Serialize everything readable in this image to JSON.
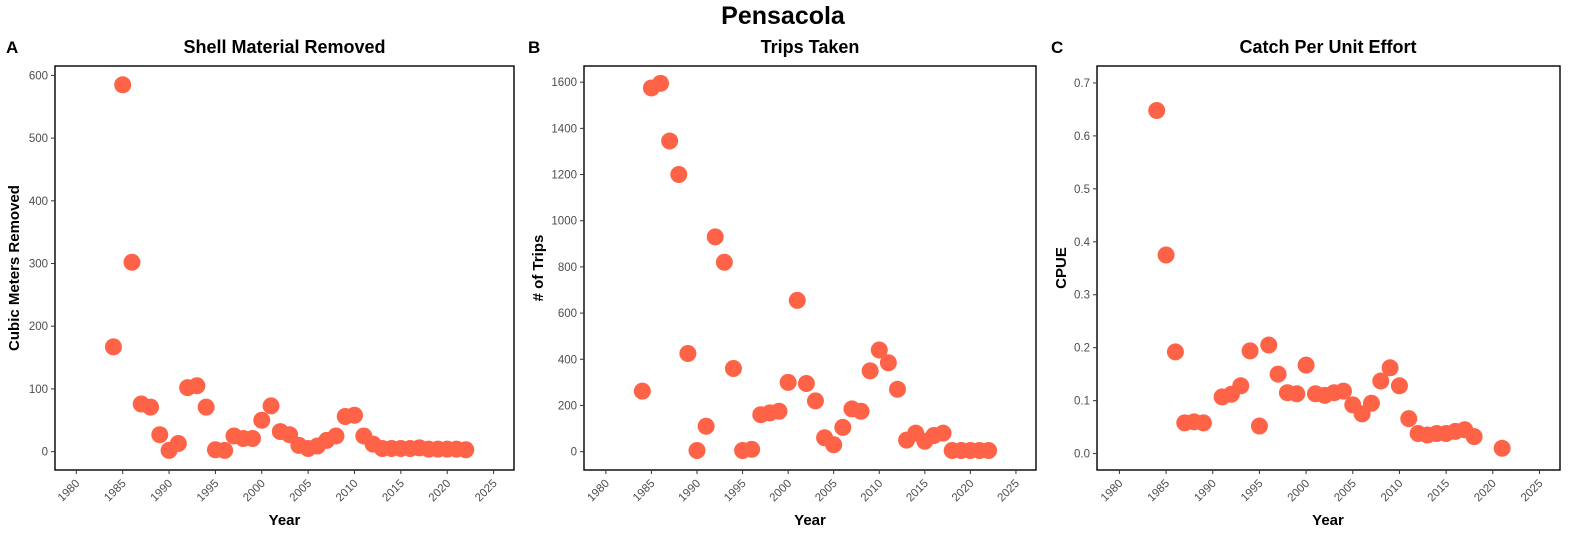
{
  "figure_title": "Pensacola",
  "colors": {
    "point": "#FF6347",
    "frame": "#000000",
    "tick_text": "#4d4d4d"
  },
  "chart_data": [
    {
      "panel": "A",
      "type": "scatter",
      "title": "Shell Material Removed",
      "xlabel": "Year",
      "ylabel": "Cubic Meters Removed",
      "xlim": [
        1977.7,
        2027.2
      ],
      "ylim": [
        -29.3,
        615
      ],
      "xticks": [
        1980,
        1985,
        1990,
        1995,
        2000,
        2005,
        2010,
        2015,
        2020,
        2025
      ],
      "yticks": [
        0,
        100,
        200,
        300,
        400,
        500,
        600
      ],
      "grid": false,
      "x": [
        1984,
        1985,
        1986,
        1987,
        1988,
        1989,
        1990,
        1991,
        1992,
        1993,
        1994,
        1995,
        1996,
        1997,
        1998,
        1999,
        2000,
        2001,
        2002,
        2003,
        2004,
        2005,
        2006,
        2007,
        2008,
        2009,
        2010,
        2011,
        2012,
        2013,
        2014,
        2015,
        2016,
        2017,
        2018,
        2019,
        2020,
        2021,
        2022
      ],
      "y": [
        167,
        585,
        302,
        76,
        71,
        27,
        2,
        13,
        102,
        105,
        71,
        3,
        2,
        25,
        21,
        21,
        50,
        73,
        32,
        27,
        10,
        5,
        9,
        18,
        25,
        56,
        58,
        25,
        12,
        5,
        5,
        5,
        5,
        6,
        4,
        4,
        4,
        4,
        3
      ]
    },
    {
      "panel": "B",
      "type": "scatter",
      "title": "Trips Taken",
      "xlabel": "Year",
      "ylabel": "# of Trips",
      "xlim": [
        1977.6,
        2027.2
      ],
      "ylim": [
        -79.5,
        1670
      ],
      "xticks": [
        1980,
        1985,
        1990,
        1995,
        2000,
        2005,
        2010,
        2015,
        2020,
        2025
      ],
      "yticks": [
        0,
        200,
        400,
        600,
        800,
        1000,
        1200,
        1400,
        1600
      ],
      "grid": false,
      "x": [
        1984,
        1985,
        1986,
        1987,
        1988,
        1989,
        1990,
        1991,
        1992,
        1993,
        1994,
        1995,
        1996,
        1997,
        1998,
        1999,
        2000,
        2001,
        2002,
        2003,
        2004,
        2005,
        2006,
        2007,
        2008,
        2009,
        2010,
        2011,
        2012,
        2013,
        2014,
        2015,
        2016,
        2017,
        2018,
        2019,
        2020,
        2021,
        2022
      ],
      "y": [
        262,
        1575,
        1595,
        1345,
        1200,
        425,
        5,
        110,
        930,
        820,
        360,
        5,
        10,
        160,
        168,
        175,
        300,
        655,
        295,
        220,
        60,
        30,
        105,
        185,
        175,
        350,
        440,
        385,
        270,
        50,
        80,
        45,
        70,
        80,
        5,
        5,
        5,
        5,
        5
      ]
    },
    {
      "panel": "C",
      "type": "scatter",
      "title": "Catch Per Unit Effort",
      "xlabel": "Year",
      "ylabel": "CPUE",
      "xlim": [
        1977.6,
        2027.2
      ],
      "ylim": [
        -0.031,
        0.732
      ],
      "xticks": [
        1980,
        1985,
        1990,
        1995,
        2000,
        2005,
        2010,
        2015,
        2020,
        2025
      ],
      "yticks": [
        0.0,
        0.1,
        0.2,
        0.3,
        0.4,
        0.5,
        0.6,
        0.7
      ],
      "ytick_labels": [
        "0.0",
        "0.1",
        "0.2",
        "0.3",
        "0.4",
        "0.5",
        "0.6",
        "0.7"
      ],
      "grid": false,
      "x": [
        1984,
        1985,
        1986,
        1987,
        1988,
        1989,
        1991,
        1992,
        1993,
        1994,
        1995,
        1996,
        1997,
        1998,
        1999,
        2000,
        2001,
        2002,
        2003,
        2004,
        2005,
        2006,
        2007,
        2008,
        2009,
        2010,
        2011,
        2012,
        2013,
        2014,
        2015,
        2016,
        2017,
        2018,
        2021
      ],
      "y": [
        0.648,
        0.375,
        0.192,
        0.058,
        0.06,
        0.058,
        0.107,
        0.112,
        0.128,
        0.194,
        0.052,
        0.205,
        0.15,
        0.115,
        0.113,
        0.167,
        0.113,
        0.11,
        0.115,
        0.118,
        0.092,
        0.075,
        0.095,
        0.137,
        0.162,
        0.128,
        0.066,
        0.038,
        0.035,
        0.038,
        0.038,
        0.042,
        0.045,
        0.032,
        0.01
      ]
    }
  ]
}
